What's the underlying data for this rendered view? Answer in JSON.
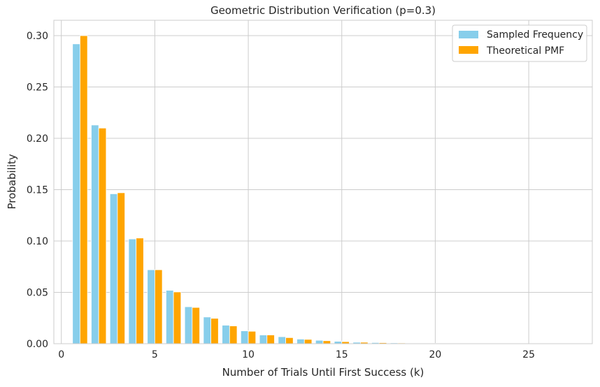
{
  "chart_data": {
    "type": "bar",
    "title": "Geometric Distribution Verification (p=0.3)",
    "xlabel": "Number of Trials Until First Success (k)",
    "ylabel": "Probability",
    "xlim": [
      -0.4,
      28.4
    ],
    "ylim": [
      0,
      0.315
    ],
    "xticks": [
      0,
      5,
      10,
      15,
      20,
      25
    ],
    "xtick_labels": [
      "0",
      "5",
      "10",
      "15",
      "20",
      "25"
    ],
    "yticks": [
      0,
      0.05,
      0.1,
      0.15,
      0.2,
      0.25,
      0.3
    ],
    "ytick_labels": [
      "0.00",
      "0.05",
      "0.10",
      "0.15",
      "0.20",
      "0.25",
      "0.30"
    ],
    "grid": true,
    "legend_position": "top-right",
    "bar_width": 0.4,
    "x": [
      1,
      2,
      3,
      4,
      5,
      6,
      7,
      8,
      9,
      10,
      11,
      12,
      13,
      14,
      15,
      16,
      17,
      18,
      19,
      20,
      21,
      22,
      23,
      24,
      25,
      26,
      27
    ],
    "series": [
      {
        "name": "Sampled Frequency",
        "color": "#87ceeb",
        "offset": -0.2,
        "values": [
          0.292,
          0.213,
          0.146,
          0.102,
          0.072,
          0.052,
          0.036,
          0.026,
          0.018,
          0.0125,
          0.0085,
          0.0068,
          0.0045,
          0.0033,
          0.0023,
          0.0014,
          0.0011,
          0.0008,
          0.0005,
          0.0004,
          0.0003,
          0.0002,
          0.0001,
          0.0001,
          0.0001,
          0.0001,
          0.0001
        ]
      },
      {
        "name": "Theoretical PMF",
        "color": "#ffa500",
        "offset": 0.2,
        "values": [
          0.3,
          0.21,
          0.147,
          0.1029,
          0.072,
          0.0504,
          0.0353,
          0.0247,
          0.0173,
          0.0121,
          0.0085,
          0.0059,
          0.0042,
          0.0029,
          0.002,
          0.0014,
          0.001,
          0.0007,
          0.0005,
          0.0003,
          0.0002,
          0.0002,
          0.0001,
          0.0001,
          0.0001,
          0.0001,
          0.0001
        ]
      }
    ]
  }
}
